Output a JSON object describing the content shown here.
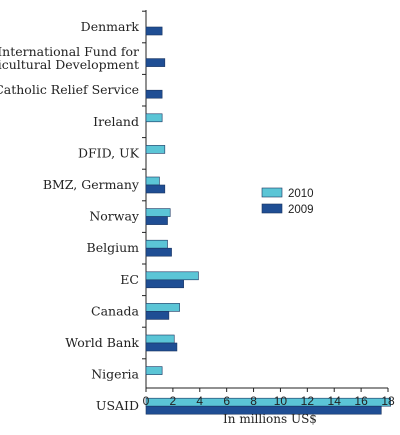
{
  "chart_data": {
    "type": "bar",
    "orientation": "horizontal",
    "categories": [
      "Denmark",
      "International Fund for Agricultural Development",
      "Catholic Relief Service",
      "Ireland",
      "DFID, UK",
      "BMZ, Germany",
      "Norway",
      "Belgium",
      "EC",
      "Canada",
      "World Bank",
      "Nigeria",
      "USAID"
    ],
    "category_lines": [
      [
        "Denmark"
      ],
      [
        "International Fund for",
        "Agricultural Development"
      ],
      [
        "Catholic Relief Service"
      ],
      [
        "Ireland"
      ],
      [
        "DFID, UK"
      ],
      [
        "BMZ, Germany"
      ],
      [
        "Norway"
      ],
      [
        "Belgium"
      ],
      [
        "EC"
      ],
      [
        "Canada"
      ],
      [
        "World Bank"
      ],
      [
        "Nigeria"
      ],
      [
        "USAID"
      ]
    ],
    "series": [
      {
        "name": "2010",
        "color": "#5bc5d6",
        "values": [
          null,
          null,
          null,
          1.2,
          1.4,
          1.0,
          1.8,
          1.6,
          3.9,
          2.5,
          2.1,
          1.2,
          18.2
        ]
      },
      {
        "name": "2009",
        "color": "#1f4e94",
        "values": [
          1.2,
          1.4,
          1.2,
          null,
          null,
          1.4,
          1.6,
          1.9,
          2.8,
          1.7,
          2.3,
          null,
          17.5
        ]
      }
    ],
    "xlabel": "In millions US$",
    "xlim": [
      0,
      18
    ],
    "xticks": [
      "0",
      "2",
      "4",
      "6",
      "8",
      "10",
      "12",
      "14",
      "16",
      "18"
    ],
    "grid": false,
    "legend_position": "right"
  }
}
